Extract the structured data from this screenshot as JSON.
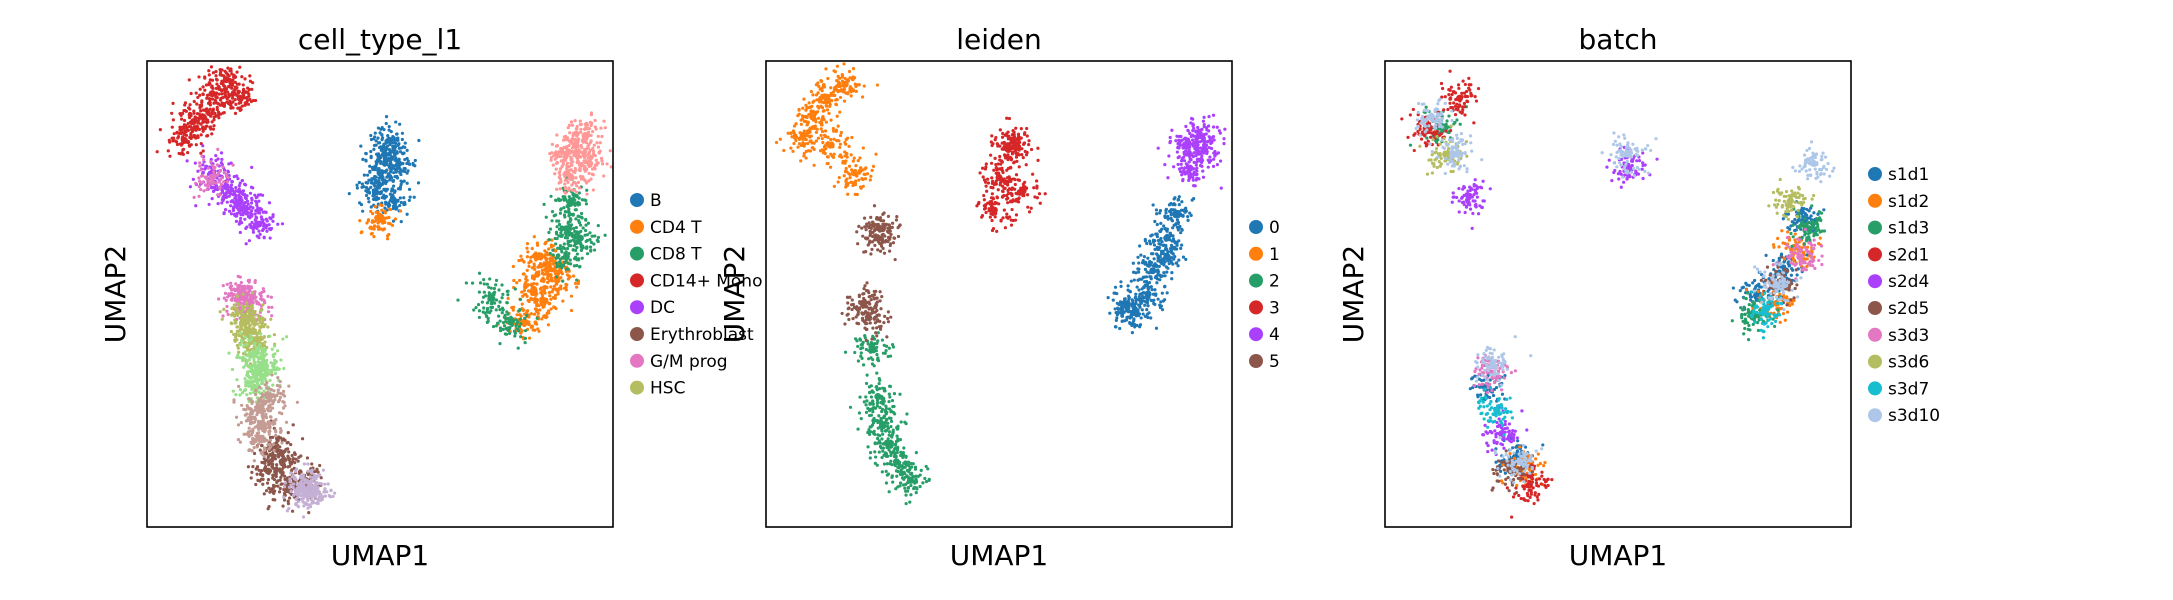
{
  "chart_data": [
    {
      "type": "scatter",
      "title": "cell_type_l1",
      "xlabel": "UMAP1",
      "ylabel": "UMAP2",
      "xlim": [
        0,
        100
      ],
      "ylim": [
        0,
        100
      ],
      "grid": false,
      "legend_position": "right",
      "series": [
        {
          "name": "B",
          "color": "#1f77b4",
          "points": [
            [
              52,
              83
            ],
            [
              50,
              76
            ],
            [
              53,
              70
            ],
            [
              49,
              72
            ],
            [
              54,
              78
            ],
            [
              51,
              80
            ]
          ]
        },
        {
          "name": "CD4 T",
          "color": "#ff7f0e",
          "points": [
            [
              83,
              51
            ],
            [
              85,
              48
            ],
            [
              86,
              56
            ],
            [
              81,
              44
            ],
            [
              88,
              53
            ],
            [
              84,
              58
            ],
            [
              50,
              66
            ]
          ]
        },
        {
          "name": "CD8 T",
          "color": "#279e68",
          "points": [
            [
              90,
              64
            ],
            [
              91,
              70
            ],
            [
              74,
              49
            ],
            [
              93,
              62
            ],
            [
              90,
              58
            ],
            [
              78,
              44
            ]
          ]
        },
        {
          "name": "CD14+ Mono",
          "color": "#d62728",
          "points": [
            [
              10,
              87
            ],
            [
              8,
              83
            ],
            [
              14,
              93
            ],
            [
              17,
              96
            ],
            [
              12,
              88
            ],
            [
              20,
              92
            ]
          ]
        },
        {
          "name": "DC",
          "color": "#aa40fc",
          "points": [
            [
              17,
              73
            ],
            [
              21,
              68
            ],
            [
              24,
              65
            ],
            [
              14,
              76
            ],
            [
              20,
              70
            ]
          ]
        },
        {
          "name": "Erythroblast",
          "color": "#8c564b",
          "points": [
            [
              29,
              14
            ],
            [
              27,
              17
            ],
            [
              34,
              10
            ],
            [
              30,
              8
            ],
            [
              26,
              12
            ]
          ]
        },
        {
          "name": "G/M prog",
          "color": "#e377c2",
          "points": [
            [
              21,
              49
            ],
            [
              22,
              47
            ],
            [
              20,
              50
            ],
            [
              14,
              75
            ]
          ]
        },
        {
          "name": "HSC",
          "color": "#b5bd61",
          "points": [
            [
              22,
              45
            ],
            [
              22,
              42
            ],
            [
              23,
              40
            ],
            [
              21,
              44
            ]
          ]
        },
        {
          "name": "",
          "color": "#98df8a",
          "points": [
            [
              23,
              37
            ],
            [
              24,
              33
            ],
            [
              23,
              30
            ],
            [
              25,
              35
            ]
          ]
        },
        {
          "name": "",
          "color": "#c49c94",
          "points": [
            [
              24,
              25
            ],
            [
              25,
              22
            ],
            [
              26,
              28
            ],
            [
              24,
              19
            ]
          ]
        },
        {
          "name": "",
          "color": "#ff9896",
          "points": [
            [
              92,
              82
            ],
            [
              95,
              78
            ],
            [
              91,
              75
            ],
            [
              94,
              84
            ],
            [
              90,
              80
            ]
          ]
        },
        {
          "name": "",
          "color": "#c5b0d5",
          "points": [
            [
              34,
              7
            ],
            [
              36,
              8
            ],
            [
              33,
              9
            ]
          ]
        }
      ]
    },
    {
      "type": "scatter",
      "title": "leiden",
      "xlabel": "UMAP1",
      "ylabel": "UMAP2",
      "xlim": [
        0,
        100
      ],
      "ylim": [
        0,
        100
      ],
      "grid": false,
      "legend_position": "right",
      "series": [
        {
          "name": "0",
          "color": "#1f77b4",
          "points": [
            [
              77,
              48
            ],
            [
              82,
              50
            ],
            [
              86,
              58
            ],
            [
              88,
              67
            ],
            [
              83,
              55
            ],
            [
              79,
              46
            ],
            [
              86,
              62
            ]
          ]
        },
        {
          "name": "1",
          "color": "#ff7f0e",
          "points": [
            [
              10,
              88
            ],
            [
              14,
              82
            ],
            [
              8,
              84
            ],
            [
              17,
              95
            ],
            [
              19,
              76
            ],
            [
              13,
              92
            ]
          ]
        },
        {
          "name": "2",
          "color": "#279e68",
          "points": [
            [
              23,
              38
            ],
            [
              24,
              28
            ],
            [
              26,
              18
            ],
            [
              31,
              10
            ],
            [
              28,
              14
            ],
            [
              25,
              22
            ]
          ]
        },
        {
          "name": "3",
          "color": "#d62728",
          "points": [
            [
              52,
              81
            ],
            [
              50,
              75
            ],
            [
              55,
              72
            ],
            [
              49,
              68
            ],
            [
              53,
              83
            ]
          ]
        },
        {
          "name": "4",
          "color": "#aa40fc",
          "points": [
            [
              90,
              82
            ],
            [
              94,
              81
            ],
            [
              91,
              77
            ],
            [
              93,
              84
            ]
          ]
        },
        {
          "name": "5",
          "color": "#8c564b",
          "points": [
            [
              21,
              48
            ],
            [
              22,
              45
            ],
            [
              25,
              64
            ],
            [
              24,
              62
            ]
          ]
        }
      ]
    },
    {
      "type": "scatter",
      "title": "batch",
      "xlabel": "UMAP1",
      "ylabel": "UMAP2",
      "xlim": [
        0,
        100
      ],
      "ylim": [
        0,
        100
      ],
      "grid": false,
      "legend_position": "right",
      "series": [
        {
          "name": "s1d1",
          "color": "#1f77b4",
          "points": [
            [
              80,
              50
            ],
            [
              86,
              55
            ],
            [
              22,
              30
            ],
            [
              28,
              15
            ],
            [
              90,
              66
            ]
          ]
        },
        {
          "name": "s1d2",
          "color": "#ff7f0e",
          "points": [
            [
              88,
              60
            ],
            [
              30,
              13
            ],
            [
              84,
              48
            ]
          ]
        },
        {
          "name": "s1d3",
          "color": "#279e68",
          "points": [
            [
              91,
              64
            ],
            [
              12,
              86
            ],
            [
              79,
              45
            ]
          ]
        },
        {
          "name": "s2d1",
          "color": "#d62728",
          "points": [
            [
              9,
              85
            ],
            [
              16,
              92
            ],
            [
              31,
              9
            ]
          ]
        },
        {
          "name": "s2d4",
          "color": "#aa40fc",
          "points": [
            [
              25,
              20
            ],
            [
              52,
              77
            ],
            [
              18,
              71
            ]
          ]
        },
        {
          "name": "s2d5",
          "color": "#8c564b",
          "points": [
            [
              27,
              12
            ],
            [
              85,
              52
            ]
          ]
        },
        {
          "name": "s3d3",
          "color": "#e377c2",
          "points": [
            [
              23,
              33
            ],
            [
              89,
              58
            ]
          ]
        },
        {
          "name": "s3d6",
          "color": "#b5bd61",
          "points": [
            [
              87,
              70
            ],
            [
              13,
              80
            ]
          ]
        },
        {
          "name": "s3d7",
          "color": "#17becf",
          "points": [
            [
              24,
              25
            ],
            [
              82,
              47
            ]
          ]
        },
        {
          "name": "s3d10",
          "color": "#aec7e8",
          "points": [
            [
              10,
              88
            ],
            [
              15,
              80
            ],
            [
              52,
              80
            ],
            [
              84,
              52
            ],
            [
              92,
              78
            ],
            [
              23,
              35
            ],
            [
              29,
              14
            ]
          ]
        }
      ]
    }
  ]
}
